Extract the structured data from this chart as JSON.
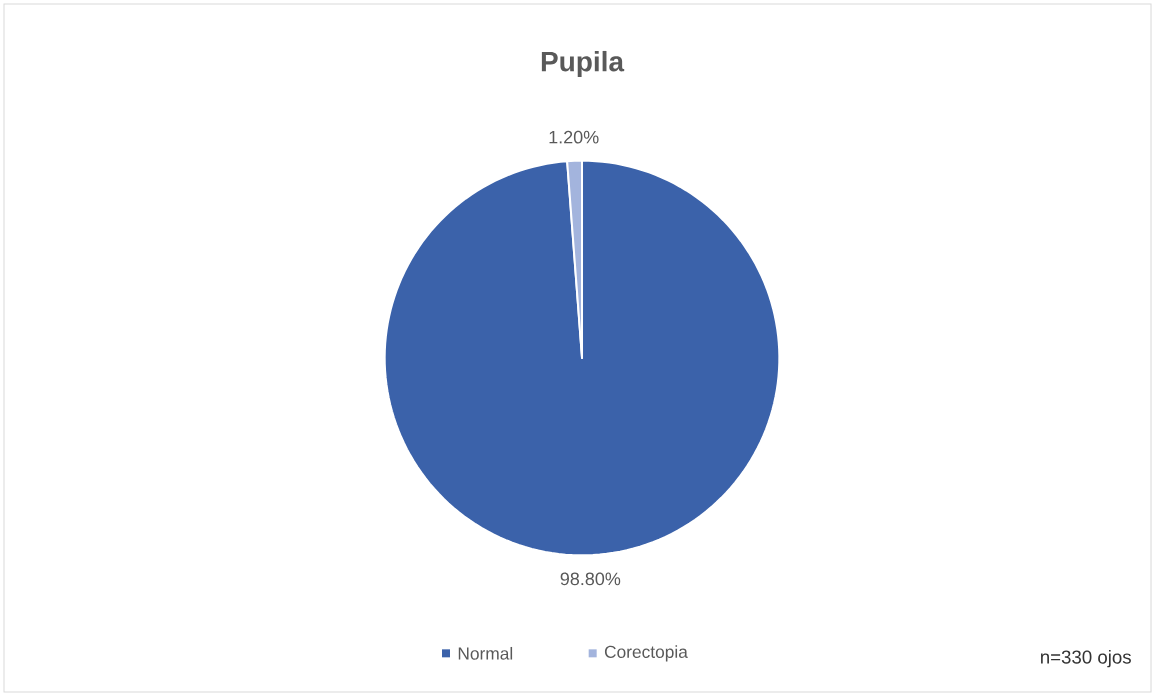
{
  "chart_data": {
    "type": "pie",
    "title": "Pupila",
    "categories": [
      "Normal",
      "Corectopia"
    ],
    "values": [
      98.8,
      1.2
    ],
    "colors": [
      "#3b62aa",
      "#a3b4dd"
    ],
    "value_labels": [
      "98.80%",
      "1.20%"
    ],
    "legend": "bottom",
    "annotations": [
      "n=330 ojos"
    ]
  }
}
